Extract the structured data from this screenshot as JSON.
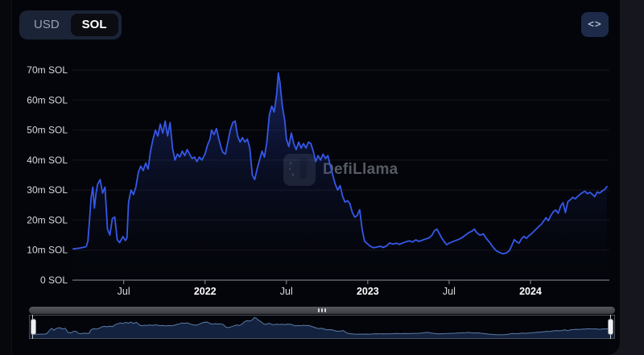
{
  "toolbar": {
    "currency_toggle": {
      "options": [
        "USD",
        "SOL"
      ],
      "selected": "SOL"
    },
    "embed_button_icon": "<>"
  },
  "watermark": {
    "text": "DefiLlama"
  },
  "colors": {
    "accent_line": "#3558E9",
    "area_top": "rgba(52,86,230,0.40)",
    "area_bottom": "rgba(8,12,24,0.02)",
    "minimap_line": "#5B7CA6",
    "minimap_fill": "#13223E",
    "axis_text": "#D8D9DB",
    "axis_text_bold": "#FFFFFF",
    "axis_line": "#8F9094",
    "grid_line": "rgba(255,255,255,0.08)"
  },
  "chart_data": {
    "type": "area",
    "title": "",
    "xlabel": "",
    "ylabel": "",
    "unit": "SOL",
    "legend": [],
    "grid": true,
    "ylim": [
      0,
      72
    ],
    "x_domain": [
      2021.185,
      2024.475
    ],
    "y_ticks": [
      {
        "value": 0,
        "label": "0 SOL"
      },
      {
        "value": 10,
        "label": "10m SOL"
      },
      {
        "value": 20,
        "label": "20m SOL"
      },
      {
        "value": 30,
        "label": "30m SOL"
      },
      {
        "value": 40,
        "label": "40m SOL"
      },
      {
        "value": 50,
        "label": "50m SOL"
      },
      {
        "value": 60,
        "label": "60m SOL"
      },
      {
        "value": 70,
        "label": "70m SOL"
      }
    ],
    "x_ticks": [
      {
        "position": 2021.5,
        "label": "Jul",
        "bold": false
      },
      {
        "position": 2022.0,
        "label": "2022",
        "bold": true
      },
      {
        "position": 2022.5,
        "label": "Jul",
        "bold": false
      },
      {
        "position": 2023.0,
        "label": "2023",
        "bold": true
      },
      {
        "position": 2023.5,
        "label": "Jul",
        "bold": false
      },
      {
        "position": 2024.0,
        "label": "2024",
        "bold": true
      }
    ],
    "series": [
      {
        "points": [
          [
            2021.19,
            10.4
          ],
          [
            2021.22,
            10.6
          ],
          [
            2021.25,
            10.9
          ],
          [
            2021.27,
            11.2
          ],
          [
            2021.28,
            13
          ],
          [
            2021.29,
            20
          ],
          [
            2021.3,
            27.5
          ],
          [
            2021.31,
            31
          ],
          [
            2021.32,
            24
          ],
          [
            2021.33,
            29
          ],
          [
            2021.34,
            32
          ],
          [
            2021.355,
            33.5
          ],
          [
            2021.37,
            29
          ],
          [
            2021.385,
            31
          ],
          [
            2021.4,
            17
          ],
          [
            2021.415,
            15
          ],
          [
            2021.43,
            20.5
          ],
          [
            2021.445,
            21
          ],
          [
            2021.46,
            13.5
          ],
          [
            2021.475,
            12.5
          ],
          [
            2021.495,
            14.5
          ],
          [
            2021.51,
            13.2
          ],
          [
            2021.52,
            14
          ],
          [
            2021.53,
            26
          ],
          [
            2021.545,
            30
          ],
          [
            2021.56,
            28.5
          ],
          [
            2021.575,
            31
          ],
          [
            2021.59,
            36
          ],
          [
            2021.605,
            38
          ],
          [
            2021.62,
            36.5
          ],
          [
            2021.635,
            39
          ],
          [
            2021.65,
            37
          ],
          [
            2021.665,
            43
          ],
          [
            2021.68,
            47
          ],
          [
            2021.695,
            50
          ],
          [
            2021.71,
            48
          ],
          [
            2021.725,
            52
          ],
          [
            2021.74,
            49
          ],
          [
            2021.755,
            53
          ],
          [
            2021.77,
            48
          ],
          [
            2021.785,
            52.5
          ],
          [
            2021.8,
            44
          ],
          [
            2021.815,
            40
          ],
          [
            2021.83,
            42
          ],
          [
            2021.845,
            41
          ],
          [
            2021.86,
            43
          ],
          [
            2021.875,
            41.5
          ],
          [
            2021.89,
            43.5
          ],
          [
            2021.905,
            42
          ],
          [
            2021.92,
            40.5
          ],
          [
            2021.935,
            41
          ],
          [
            2021.95,
            39.5
          ],
          [
            2021.965,
            41
          ],
          [
            2021.98,
            40
          ],
          [
            2022.0,
            42
          ],
          [
            2022.015,
            45
          ],
          [
            2022.03,
            47
          ],
          [
            2022.04,
            50
          ],
          [
            2022.055,
            48.5
          ],
          [
            2022.07,
            50.5
          ],
          [
            2022.085,
            47
          ],
          [
            2022.1,
            44
          ],
          [
            2022.11,
            42.5
          ],
          [
            2022.125,
            42
          ],
          [
            2022.14,
            46
          ],
          [
            2022.155,
            50
          ],
          [
            2022.17,
            52.5
          ],
          [
            2022.185,
            53
          ],
          [
            2022.2,
            48
          ],
          [
            2022.215,
            46
          ],
          [
            2022.23,
            47.5
          ],
          [
            2022.245,
            46
          ],
          [
            2022.26,
            47
          ],
          [
            2022.275,
            44
          ],
          [
            2022.29,
            35
          ],
          [
            2022.305,
            33.5
          ],
          [
            2022.32,
            37
          ],
          [
            2022.335,
            40
          ],
          [
            2022.35,
            43
          ],
          [
            2022.365,
            41
          ],
          [
            2022.38,
            46
          ],
          [
            2022.395,
            55
          ],
          [
            2022.41,
            58
          ],
          [
            2022.425,
            56
          ],
          [
            2022.44,
            62
          ],
          [
            2022.45,
            69
          ],
          [
            2022.46,
            66
          ],
          [
            2022.475,
            58
          ],
          [
            2022.49,
            53
          ],
          [
            2022.5,
            47
          ],
          [
            2022.515,
            44.5
          ],
          [
            2022.53,
            49
          ],
          [
            2022.545,
            45.5
          ],
          [
            2022.56,
            43.5
          ],
          [
            2022.575,
            46
          ],
          [
            2022.59,
            44
          ],
          [
            2022.605,
            45.5
          ],
          [
            2022.62,
            44
          ],
          [
            2022.635,
            46
          ],
          [
            2022.65,
            45.5
          ],
          [
            2022.665,
            43
          ],
          [
            2022.68,
            39.5
          ],
          [
            2022.695,
            41.5
          ],
          [
            2022.71,
            40
          ],
          [
            2022.725,
            42
          ],
          [
            2022.74,
            40.5
          ],
          [
            2022.755,
            41.5
          ],
          [
            2022.77,
            38
          ],
          [
            2022.785,
            35
          ],
          [
            2022.8,
            32
          ],
          [
            2022.815,
            30
          ],
          [
            2022.83,
            31.5
          ],
          [
            2022.845,
            28
          ],
          [
            2022.86,
            26
          ],
          [
            2022.875,
            26.5
          ],
          [
            2022.89,
            25.5
          ],
          [
            2022.905,
            22.5
          ],
          [
            2022.92,
            21
          ],
          [
            2022.935,
            21.5
          ],
          [
            2022.95,
            23.5
          ],
          [
            2022.965,
            17
          ],
          [
            2022.98,
            13
          ],
          [
            2023.0,
            12
          ],
          [
            2023.015,
            11.3
          ],
          [
            2023.035,
            10.8
          ],
          [
            2023.055,
            11
          ],
          [
            2023.075,
            11.3
          ],
          [
            2023.095,
            10.9
          ],
          [
            2023.115,
            11.4
          ],
          [
            2023.135,
            12.4
          ],
          [
            2023.155,
            12
          ],
          [
            2023.175,
            12.3
          ],
          [
            2023.195,
            11.9
          ],
          [
            2023.215,
            12.4
          ],
          [
            2023.235,
            12.8
          ],
          [
            2023.255,
            13.1
          ],
          [
            2023.275,
            12.7
          ],
          [
            2023.295,
            13.4
          ],
          [
            2023.315,
            12.9
          ],
          [
            2023.335,
            13.3
          ],
          [
            2023.355,
            13.7
          ],
          [
            2023.375,
            14
          ],
          [
            2023.395,
            15
          ],
          [
            2023.41,
            16.5
          ],
          [
            2023.425,
            17
          ],
          [
            2023.44,
            15.5
          ],
          [
            2023.455,
            14
          ],
          [
            2023.47,
            12.8
          ],
          [
            2023.485,
            11.8
          ],
          [
            2023.5,
            12.3
          ],
          [
            2023.52,
            12.8
          ],
          [
            2023.54,
            13.2
          ],
          [
            2023.56,
            13.6
          ],
          [
            2023.58,
            14.2
          ],
          [
            2023.6,
            15
          ],
          [
            2023.62,
            15.8
          ],
          [
            2023.64,
            16.3
          ],
          [
            2023.655,
            17
          ],
          [
            2023.67,
            15.8
          ],
          [
            2023.69,
            15
          ],
          [
            2023.71,
            15.4
          ],
          [
            2023.73,
            13.8
          ],
          [
            2023.75,
            12.5
          ],
          [
            2023.77,
            11
          ],
          [
            2023.79,
            9.8
          ],
          [
            2023.81,
            9.2
          ],
          [
            2023.83,
            8.8
          ],
          [
            2023.85,
            9
          ],
          [
            2023.87,
            9.8
          ],
          [
            2023.885,
            11.5
          ],
          [
            2023.9,
            13.5
          ],
          [
            2023.915,
            12.8
          ],
          [
            2023.93,
            12.3
          ],
          [
            2023.945,
            13.8
          ],
          [
            2023.96,
            14.6
          ],
          [
            2023.975,
            13.9
          ],
          [
            2023.99,
            14.8
          ],
          [
            2024.005,
            15.4
          ],
          [
            2024.02,
            16.2
          ],
          [
            2024.035,
            17
          ],
          [
            2024.05,
            17.8
          ],
          [
            2024.065,
            18.5
          ],
          [
            2024.08,
            19.6
          ],
          [
            2024.095,
            20.8
          ],
          [
            2024.11,
            19.8
          ],
          [
            2024.125,
            21.5
          ],
          [
            2024.14,
            22.8
          ],
          [
            2024.155,
            23.4
          ],
          [
            2024.17,
            22.3
          ],
          [
            2024.185,
            24.6
          ],
          [
            2024.2,
            25.8
          ],
          [
            2024.215,
            22.5
          ],
          [
            2024.23,
            26.2
          ],
          [
            2024.245,
            26.8
          ],
          [
            2024.26,
            27.6
          ],
          [
            2024.275,
            27.1
          ],
          [
            2024.29,
            27.9
          ],
          [
            2024.305,
            28.6
          ],
          [
            2024.32,
            29.2
          ],
          [
            2024.335,
            29.6
          ],
          [
            2024.35,
            28.8
          ],
          [
            2024.365,
            29.3
          ],
          [
            2024.38,
            28.6
          ],
          [
            2024.395,
            27.8
          ],
          [
            2024.41,
            29.4
          ],
          [
            2024.425,
            29.0
          ],
          [
            2024.44,
            29.7
          ],
          [
            2024.455,
            30.2
          ],
          [
            2024.47,
            31.2
          ]
        ]
      }
    ]
  }
}
